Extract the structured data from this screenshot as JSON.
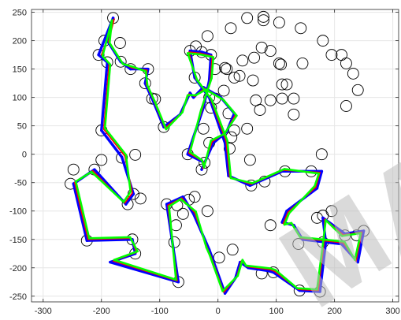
{
  "chart_data": {
    "type": "line",
    "title": "",
    "xlabel": "",
    "ylabel": "",
    "xlim": [
      -320,
      310
    ],
    "ylim": [
      -260,
      255
    ],
    "xticks": [
      -300,
      -200,
      -100,
      0,
      100,
      200,
      300
    ],
    "yticks": [
      250,
      200,
      150,
      100,
      50,
      0,
      -50,
      -100,
      -150,
      -200,
      -250
    ],
    "grid": true,
    "legend": "none",
    "colors": {
      "path_blue": "#0000ff",
      "path_red": "#ff0000",
      "path_green": "#00ff00",
      "circle": "#000000",
      "grid": "#e6e6e6",
      "axes": "#262626"
    },
    "circles": [
      [
        -180,
        240
      ],
      [
        -195,
        200
      ],
      [
        -168,
        196
      ],
      [
        -205,
        175
      ],
      [
        -190,
        162
      ],
      [
        -167,
        163
      ],
      [
        -150,
        150
      ],
      [
        -120,
        150
      ],
      [
        -125,
        125
      ],
      [
        -113,
        98
      ],
      [
        -108,
        97
      ],
      [
        -200,
        42
      ],
      [
        -93,
        48
      ],
      [
        -25,
        45
      ],
      [
        -52,
        0
      ],
      [
        -23,
        -15
      ],
      [
        -28,
        -27
      ],
      [
        -15,
        20
      ],
      [
        -200,
        -10
      ],
      [
        -165,
        -6
      ],
      [
        -142,
        -1
      ],
      [
        -212,
        -27
      ],
      [
        -248,
        -27
      ],
      [
        -253,
        -52
      ],
      [
        -145,
        -70
      ],
      [
        -133,
        -78
      ],
      [
        -155,
        -88
      ],
      [
        -225,
        -152
      ],
      [
        -147,
        -150
      ],
      [
        -142,
        -175
      ],
      [
        -60,
        -105
      ],
      [
        -40,
        -75
      ],
      [
        -50,
        -80
      ],
      [
        -18,
        -100
      ],
      [
        -88,
        -88
      ],
      [
        -70,
        -90
      ],
      [
        -72,
        -125
      ],
      [
        -75,
        -155
      ],
      [
        -68,
        -225
      ],
      [
        2,
        -182
      ],
      [
        25,
        -168
      ],
      [
        75,
        -210
      ],
      [
        95,
        -208
      ],
      [
        140,
        -240
      ],
      [
        175,
        -242
      ],
      [
        138,
        -158
      ],
      [
        180,
        -155
      ],
      [
        218,
        -143
      ],
      [
        238,
        -143
      ],
      [
        250,
        -135
      ],
      [
        170,
        -112
      ],
      [
        180,
        -108
      ],
      [
        195,
        -100
      ],
      [
        90,
        -125
      ],
      [
        57,
        -55
      ],
      [
        80,
        -48
      ],
      [
        115,
        -30
      ],
      [
        160,
        -30
      ],
      [
        55,
        -10
      ],
      [
        178,
        0
      ],
      [
        50,
        45
      ],
      [
        72,
        78
      ],
      [
        90,
        95
      ],
      [
        65,
        95
      ],
      [
        60,
        130
      ],
      [
        28,
        135
      ],
      [
        15,
        150
      ],
      [
        -5,
        150
      ],
      [
        -40,
        135
      ],
      [
        -48,
        182
      ],
      [
        -28,
        180
      ],
      [
        -12,
        175
      ],
      [
        -15,
        100
      ],
      [
        10,
        112
      ],
      [
        18,
        72
      ],
      [
        28,
        42
      ],
      [
        23,
        30
      ],
      [
        20,
        10
      ],
      [
        37,
        138
      ],
      [
        -5,
        98
      ],
      [
        -12,
        82
      ],
      [
        12,
        152
      ],
      [
        42,
        165
      ],
      [
        62,
        170
      ],
      [
        75,
        188
      ],
      [
        90,
        182
      ],
      [
        105,
        160
      ],
      [
        110,
        123
      ],
      [
        110,
        98
      ],
      [
        130,
        70
      ],
      [
        118,
        123
      ],
      [
        108,
        158
      ],
      [
        145,
        160
      ],
      [
        195,
        175
      ],
      [
        212,
        175
      ],
      [
        220,
        160
      ],
      [
        232,
        142
      ],
      [
        240,
        113
      ],
      [
        220,
        85
      ],
      [
        130,
        98
      ],
      [
        180,
        200
      ],
      [
        142,
        222
      ],
      [
        105,
        232
      ],
      [
        78,
        242
      ],
      [
        78,
        236
      ],
      [
        50,
        240
      ],
      [
        22,
        222
      ],
      [
        -18,
        208
      ],
      [
        -38,
        190
      ]
    ],
    "series": [
      {
        "color": "blue",
        "x": [
          -180,
          -205,
          -190,
          -200,
          -165,
          -145,
          -158,
          -212,
          -248,
          -225,
          -147,
          -142,
          -185,
          -68,
          -88,
          -60,
          -42,
          -15,
          -10,
          12,
          30,
          38,
          52,
          85,
          95,
          140,
          175,
          185,
          180,
          218,
          250,
          240,
          212,
          145,
          130,
          110,
          118,
          170,
          178,
          110,
          55,
          18,
          12,
          -15,
          -40,
          -48,
          -28,
          -12,
          -15,
          -25,
          -52,
          -23,
          -28,
          -8,
          15,
          28,
          5,
          -25,
          -42,
          -48,
          -65,
          -93,
          -113,
          -125,
          -120,
          -150,
          -167,
          -190,
          -180
        ],
        "y": [
          240,
          175,
          162,
          42,
          -5,
          -70,
          -88,
          -27,
          -52,
          -152,
          -150,
          -175,
          -190,
          -225,
          -88,
          -75,
          -105,
          -168,
          -182,
          -245,
          -218,
          -190,
          -200,
          -205,
          -208,
          -240,
          -242,
          -155,
          -112,
          -140,
          -135,
          -190,
          -158,
          -150,
          -125,
          -120,
          -100,
          -60,
          -30,
          -30,
          -55,
          -38,
          20,
          100,
          135,
          182,
          180,
          175,
          130,
          82,
          0,
          -15,
          -27,
          20,
          40,
          72,
          100,
          118,
          100,
          108,
          70,
          48,
          98,
          125,
          150,
          150,
          163,
          200,
          240
        ]
      },
      {
        "color": "red",
        "x": [
          -178,
          -200,
          -187,
          -196,
          -160,
          -147,
          -160,
          -215,
          -246,
          -223,
          -149,
          -140,
          -180,
          -70,
          -86,
          -62,
          -40,
          -18,
          -12,
          10,
          32,
          40,
          50,
          88,
          97,
          138,
          172,
          182,
          183,
          215,
          247,
          237,
          215,
          143,
          128,
          112,
          120,
          168,
          175,
          112,
          57,
          20,
          14,
          -13,
          -38,
          -50,
          -30,
          -10,
          -13,
          -27,
          -50,
          -25,
          -26,
          -10,
          13,
          30,
          7,
          -23,
          -40,
          -50,
          -63,
          -91,
          -111,
          -123,
          -122,
          -148,
          -165,
          -188,
          -178
        ],
        "y": [
          238,
          175,
          160,
          44,
          -3,
          -68,
          -86,
          -29,
          -50,
          -150,
          -148,
          -173,
          -188,
          -223,
          -90,
          -77,
          -103,
          -166,
          -180,
          -243,
          -216,
          -188,
          -198,
          -203,
          -206,
          -238,
          -240,
          -157,
          -114,
          -142,
          -137,
          -188,
          -156,
          -148,
          -123,
          -122,
          -102,
          -58,
          -32,
          -28,
          -53,
          -40,
          22,
          98,
          133,
          180,
          178,
          173,
          132,
          80,
          2,
          -13,
          -25,
          22,
          38,
          70,
          98,
          116,
          102,
          106,
          72,
          46,
          96,
          123,
          148,
          152,
          161,
          198,
          238
        ]
      },
      {
        "color": "green",
        "x": [
          -182,
          -198,
          -185,
          -194,
          -158,
          -150,
          -162,
          -217,
          -244,
          -221,
          -151,
          -138,
          -178,
          -72,
          -84,
          -64,
          -38,
          -20,
          -14,
          8,
          34,
          42,
          48,
          90,
          99,
          136,
          170,
          180,
          185,
          213,
          245,
          235,
          217,
          141,
          126,
          114,
          122,
          166,
          173,
          114,
          59,
          22,
          16,
          -11,
          -36,
          -52,
          -32,
          -8,
          -11,
          -29,
          -48,
          -27,
          -24,
          -12,
          11,
          32,
          9,
          -21,
          -38,
          -52,
          -61,
          -89,
          -109,
          -121,
          -124,
          -146,
          -163,
          -186,
          -182
        ],
        "y": [
          236,
          173,
          158,
          46,
          -1,
          -66,
          -84,
          -31,
          -48,
          -148,
          -146,
          -171,
          -186,
          -221,
          -92,
          -79,
          -101,
          -164,
          -178,
          -241,
          -214,
          -186,
          -196,
          -201,
          -204,
          -236,
          -238,
          -159,
          -116,
          -144,
          -139,
          -186,
          -154,
          -146,
          -121,
          -124,
          -104,
          -56,
          -34,
          -26,
          -51,
          -42,
          24,
          96,
          131,
          178,
          176,
          171,
          134,
          78,
          4,
          -11,
          -23,
          24,
          36,
          68,
          96,
          114,
          104,
          104,
          74,
          44,
          94,
          121,
          146,
          154,
          159,
          196,
          236
        ]
      }
    ],
    "watermark": "MAP"
  }
}
